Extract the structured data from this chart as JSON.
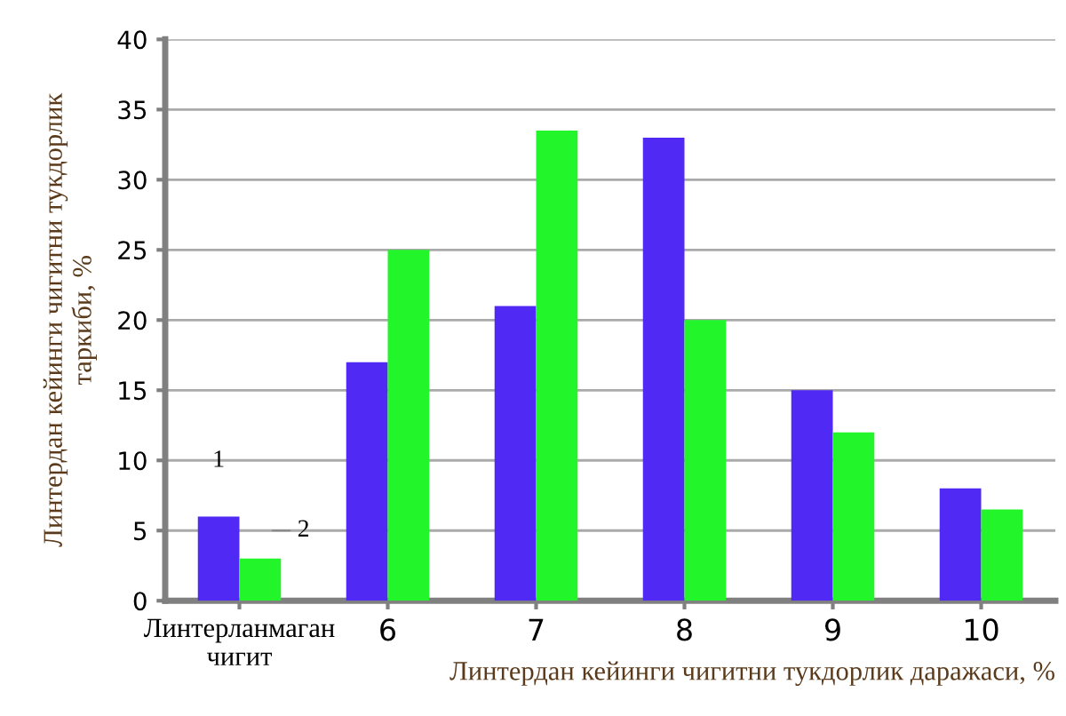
{
  "chart_data": {
    "type": "bar",
    "xlabel": "Линтердан кейинги чигитни тукдорлик даражаси, %",
    "ylabel": "Линтердан кейинги чигитни тукдорлик\nтаркиби, %",
    "categories": [
      "Линтерланмаган\nчигит",
      "6",
      "7",
      "8",
      "9",
      "10"
    ],
    "series": [
      {
        "name": "1",
        "color": "#5029f5",
        "values": [
          6,
          17,
          21,
          33,
          15,
          8
        ]
      },
      {
        "name": "2",
        "color": "#22f52a",
        "values": [
          3,
          25,
          33.5,
          20,
          12,
          6.5
        ]
      }
    ],
    "ylim": [
      0,
      40
    ],
    "yticks": [
      0,
      5,
      10,
      15,
      20,
      25,
      30,
      35,
      40
    ],
    "grid": "y",
    "legend": false
  }
}
